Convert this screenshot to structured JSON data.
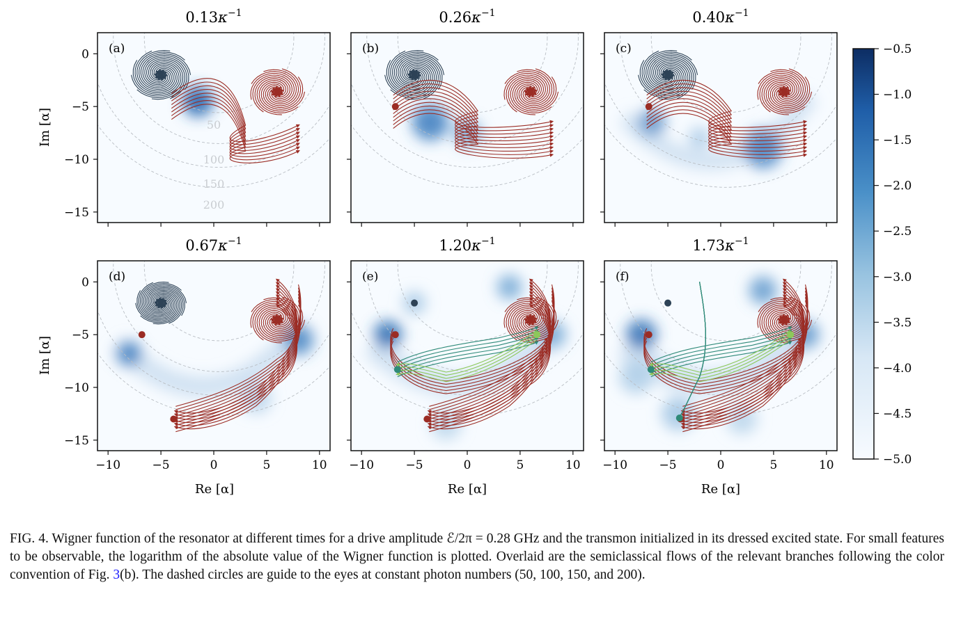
{
  "figure": {
    "panels": [
      {
        "letter": "(a)",
        "time": "0.13",
        "show_contours": true
      },
      {
        "letter": "(b)",
        "time": "0.26",
        "show_contours": false
      },
      {
        "letter": "(c)",
        "time": "0.40",
        "show_contours": false
      },
      {
        "letter": "(d)",
        "time": "0.67",
        "show_contours": false
      },
      {
        "letter": "(e)",
        "time": "1.20",
        "show_contours": false
      },
      {
        "letter": "(f)",
        "time": "1.73",
        "show_contours": false
      }
    ],
    "time_unit": "κ",
    "time_exponent": "−1",
    "xlabel": "Re [α]",
    "ylabel": "Im [α]",
    "xticks": [
      "−10",
      "−5",
      "0",
      "5",
      "10"
    ],
    "yticks": [
      "0",
      "−5",
      "−10",
      "−15"
    ],
    "contour_labels": [
      "50",
      "100",
      "150",
      "200"
    ],
    "colorbar_ticks": [
      "−0.5",
      "−1.0",
      "−1.5",
      "−2.0",
      "−2.5",
      "−3.0",
      "−3.5",
      "−4.0",
      "−4.5",
      "−5.0"
    ],
    "colors": {
      "red_branch": "#9b2c24",
      "dark_branch": "#2d4256",
      "teal_branch": "#2f8a78",
      "lime_branch": "#8dc85a",
      "wigner_max": "#0d2d63",
      "wigner_min": "#f7fbff"
    }
  },
  "chart_data": {
    "type": "heatmap",
    "description_panels": [
      "(a)",
      "(b)",
      "(c)",
      "(d)",
      "(e)",
      "(f)"
    ],
    "times_kappa_inv": [
      0.13,
      0.26,
      0.4,
      0.67,
      1.2,
      1.73
    ],
    "xlim": [
      -11,
      11
    ],
    "ylim": [
      -16,
      2
    ],
    "colorbar_range": [
      -5.0,
      -0.5
    ],
    "photon_number_circles": [
      50,
      100,
      150,
      200
    ],
    "fixed_points": [
      {
        "branch": "dark",
        "x": -5,
        "y": -2
      },
      {
        "branch": "red",
        "x": 6,
        "y": -3.6
      },
      {
        "branch": "red",
        "x": -6.8,
        "y": -5
      },
      {
        "branch": "red",
        "x": -3.8,
        "y": -13
      },
      {
        "branch": "lime",
        "x": 6.6,
        "y": -5
      },
      {
        "branch": "teal",
        "x": -6.6,
        "y": -8.3
      }
    ]
  },
  "caption": {
    "part1": "FIG. 4. Wigner function of the resonator at different times for a drive amplitude ℰ/2π = 0.28 GHz and the transmon initialized in its dressed excited state. For small features to be observable, the logarithm of the absolute value of the Wigner function is plotted. Overlaid are the semiclassical flows of the relevant branches following the color convention of Fig. ",
    "ref": "3",
    "part2": "(b). The dashed circles are guide to the eyes at constant photon numbers (50, 100, 150, and 200)."
  }
}
